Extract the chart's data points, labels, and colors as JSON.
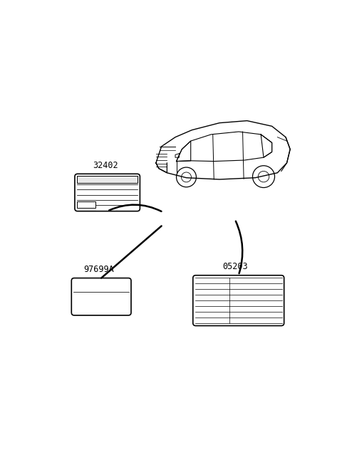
{
  "bg_color": "#ffffff",
  "line_color": "#000000",
  "label_32402": "32402",
  "label_97699A": "97699A",
  "label_05203": "05203",
  "fig_width": 4.8,
  "fig_height": 6.56,
  "dpi": 100
}
